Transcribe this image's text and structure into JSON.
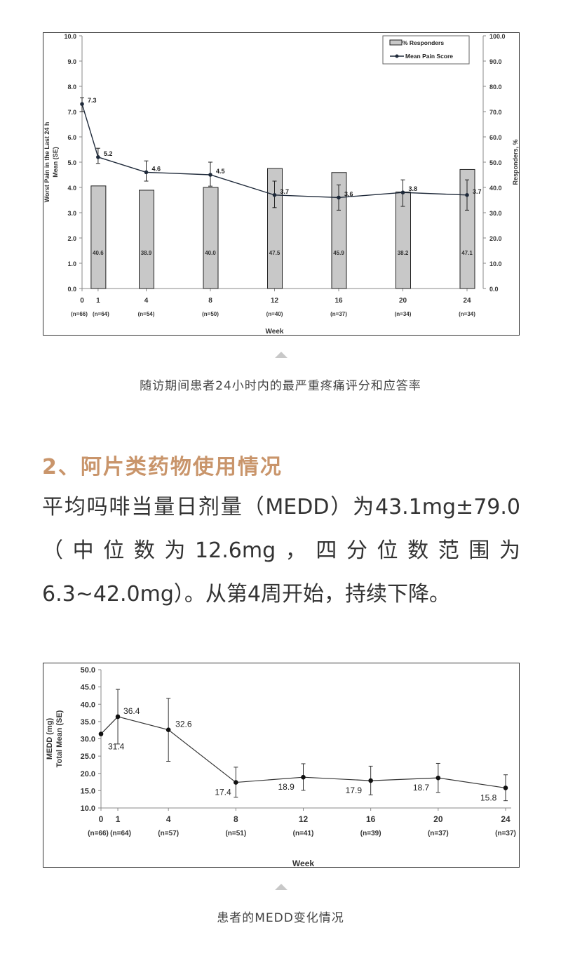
{
  "chart_data": [
    {
      "type": "bar+line",
      "xlabel": "Week",
      "ylabel": "Worst Pain in the Last 24 h\nMean (SE)",
      "y2label": "Responders, %",
      "ylim": [
        0,
        10
      ],
      "y2lim": [
        0,
        100
      ],
      "yticks": [
        "0.0",
        "1.0",
        "2.0",
        "3.0",
        "4.0",
        "5.0",
        "6.0",
        "7.0",
        "8.0",
        "9.0",
        "10.0"
      ],
      "y2ticks": [
        "0.0",
        "10.0",
        "20.0",
        "30.0",
        "40.0",
        "50.0",
        "60.0",
        "70.0",
        "80.0",
        "90.0",
        "100.0"
      ],
      "legend": [
        "% Responders",
        "Mean Pain Score"
      ],
      "legend_position": "top-right",
      "x": [
        0,
        1,
        4,
        8,
        12,
        16,
        20,
        24
      ],
      "n_labels": [
        "(n=66)",
        "(n=64)",
        "(n=54)",
        "(n=50)",
        "(n=40)",
        "(n=37)",
        "(n=34)",
        "(n=34)"
      ],
      "series": [
        {
          "name": "% Responders",
          "type": "bar",
          "x": [
            1,
            4,
            8,
            12,
            16,
            20,
            24
          ],
          "values": [
            40.6,
            38.9,
            40.0,
            47.5,
            45.9,
            38.2,
            47.1
          ],
          "color": "#c8c8c8"
        },
        {
          "name": "Mean Pain Score",
          "type": "line",
          "values": [
            7.3,
            5.2,
            4.6,
            4.5,
            3.7,
            3.6,
            3.8,
            3.7
          ],
          "err_low": [
            7.0,
            4.95,
            4.25,
            4.05,
            3.2,
            3.1,
            3.25,
            3.1
          ],
          "err_high": [
            7.55,
            5.55,
            5.05,
            5.0,
            4.25,
            4.1,
            4.3,
            4.3
          ],
          "color": "#1f2a3a"
        }
      ]
    },
    {
      "type": "line",
      "xlabel": "Week",
      "ylabel": "MEDD (mg)\nTotal Mean (SE)",
      "ylim": [
        10,
        50
      ],
      "yticks": [
        "10.0",
        "15.0",
        "20.0",
        "25.0",
        "30.0",
        "35.0",
        "40.0",
        "45.0",
        "50.0"
      ],
      "x": [
        0,
        1,
        4,
        8,
        12,
        16,
        20,
        24
      ],
      "n_labels": [
        "(n=66)",
        "(n=64)",
        "(n=57)",
        "(n=51)",
        "(n=41)",
        "(n=39)",
        "(n=37)",
        "(n=37)"
      ],
      "series": [
        {
          "values": [
            31.4,
            36.4,
            32.6,
            17.4,
            18.9,
            17.9,
            18.7,
            15.8
          ],
          "err_low": [
            null,
            28.5,
            23.5,
            13.1,
            15.1,
            13.8,
            14.5,
            12.1
          ],
          "err_high": [
            null,
            44.3,
            41.7,
            21.8,
            22.8,
            22.1,
            22.9,
            19.6
          ],
          "color": "#111111"
        }
      ]
    }
  ],
  "caption1": "随访期间患者24小时内的最严重疼痛评分和应答率",
  "heading": "2、阿片类药物使用情况",
  "paragraph": [
    "平均吗啡当量日剂量（MEDD）为43.1mg±79.0",
    "（中位数为12.6mg，四分位数范围为",
    "6.3~42.0mg）。从第4周开始，持续下降。"
  ],
  "caption2": "患者的MEDD变化情况",
  "colors": {
    "heading": "#c9956b",
    "caption": "#444444"
  }
}
